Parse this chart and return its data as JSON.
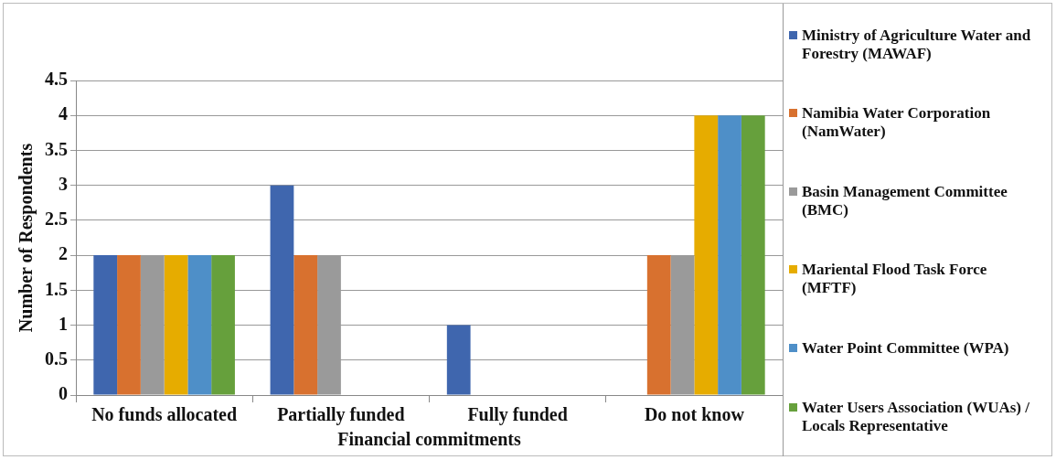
{
  "chart_data": {
    "type": "bar",
    "xlabel": "Financial commitments",
    "ylabel": "Number of Respondents",
    "categories": [
      "No funds allocated",
      "Partially funded",
      "Fully funded",
      "Do not know"
    ],
    "series": [
      {
        "name": "Ministry of Agriculture Water and Forestry (MAWAF)",
        "color": "#3f66ae",
        "values": [
          2,
          3,
          1,
          0
        ]
      },
      {
        "name": "Namibia Water Corporation (NamWater)",
        "color": "#d8712f",
        "values": [
          2,
          2,
          0,
          2
        ]
      },
      {
        "name": "Basin Management Committee (BMC)",
        "color": "#9a9a9a",
        "values": [
          2,
          2,
          0,
          2
        ]
      },
      {
        "name": "Mariental Flood Task Force (MFTF)",
        "color": "#e6ac00",
        "values": [
          2,
          0,
          0,
          4
        ]
      },
      {
        "name": "Water Point  Committee (WPA)",
        "color": "#4e8fc8",
        "values": [
          2,
          0,
          0,
          4
        ]
      },
      {
        "name": "Water Users Association (WUAs) / Locals Representative",
        "color": "#66a03c",
        "values": [
          2,
          0,
          0,
          4
        ]
      }
    ],
    "ylim": [
      0,
      4.5
    ],
    "yticks": [
      0,
      0.5,
      1,
      1.5,
      2,
      2.5,
      3,
      3.5,
      4,
      4.5
    ],
    "grid": "y",
    "legend": "right"
  }
}
